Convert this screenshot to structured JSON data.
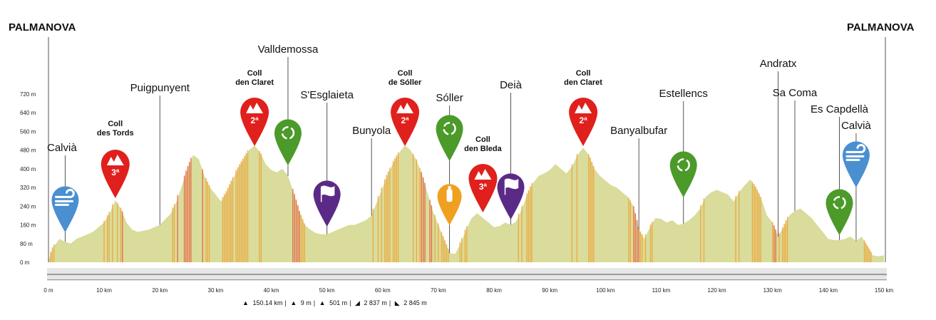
{
  "chart_data": {
    "type": "area",
    "title": "",
    "xlabel": "",
    "ylabel": "",
    "xlim": [
      0,
      150
    ],
    "ylim": [
      0,
      760
    ],
    "y_ticks": [
      "0 m",
      "80 m",
      "160 m",
      "240 m",
      "320 m",
      "400 m",
      "480 m",
      "560 m",
      "640 m",
      "720 m"
    ],
    "y_tick_values": [
      0,
      80,
      160,
      240,
      320,
      400,
      480,
      560,
      640,
      720
    ],
    "x_ticks": [
      "0 m",
      "10 km",
      "20 km",
      "30 km",
      "40 km",
      "50 km",
      "60 km",
      "70 km",
      "80 km",
      "90 km",
      "100 km",
      "110 km",
      "120 km",
      "130 km",
      "140 km",
      "150 km"
    ],
    "x_tick_values": [
      0,
      10,
      20,
      30,
      40,
      50,
      60,
      70,
      80,
      90,
      100,
      110,
      120,
      130,
      140,
      150
    ],
    "profile": [
      [
        0,
        10
      ],
      [
        1,
        70
      ],
      [
        2,
        100
      ],
      [
        3,
        88
      ],
      [
        4,
        80
      ],
      [
        5,
        100
      ],
      [
        6,
        110
      ],
      [
        7,
        120
      ],
      [
        8,
        130
      ],
      [
        9,
        150
      ],
      [
        10,
        170
      ],
      [
        11,
        210
      ],
      [
        12,
        265
      ],
      [
        13,
        230
      ],
      [
        14,
        170
      ],
      [
        15,
        140
      ],
      [
        16,
        130
      ],
      [
        17,
        135
      ],
      [
        18,
        140
      ],
      [
        19,
        150
      ],
      [
        20,
        160
      ],
      [
        21,
        185
      ],
      [
        22,
        210
      ],
      [
        23,
        260
      ],
      [
        24,
        330
      ],
      [
        25,
        400
      ],
      [
        26,
        460
      ],
      [
        27,
        440
      ],
      [
        28,
        370
      ],
      [
        29,
        320
      ],
      [
        30,
        290
      ],
      [
        31,
        260
      ],
      [
        32,
        300
      ],
      [
        33,
        350
      ],
      [
        34,
        400
      ],
      [
        35,
        440
      ],
      [
        36,
        480
      ],
      [
        37,
        500
      ],
      [
        38,
        470
      ],
      [
        39,
        420
      ],
      [
        40,
        395
      ],
      [
        41,
        385
      ],
      [
        42,
        400
      ],
      [
        43,
        370
      ],
      [
        44,
        300
      ],
      [
        45,
        220
      ],
      [
        46,
        160
      ],
      [
        47,
        140
      ],
      [
        48,
        125
      ],
      [
        49,
        120
      ],
      [
        50,
        120
      ],
      [
        51,
        130
      ],
      [
        52,
        140
      ],
      [
        53,
        150
      ],
      [
        54,
        160
      ],
      [
        55,
        160
      ],
      [
        56,
        170
      ],
      [
        57,
        180
      ],
      [
        58,
        200
      ],
      [
        59,
        260
      ],
      [
        60,
        320
      ],
      [
        61,
        380
      ],
      [
        62,
        430
      ],
      [
        63,
        470
      ],
      [
        64,
        500
      ],
      [
        65,
        480
      ],
      [
        66,
        440
      ],
      [
        67,
        380
      ],
      [
        68,
        300
      ],
      [
        69,
        220
      ],
      [
        70,
        160
      ],
      [
        71,
        100
      ],
      [
        72,
        40
      ],
      [
        73,
        35
      ],
      [
        74,
        80
      ],
      [
        75,
        140
      ],
      [
        76,
        190
      ],
      [
        77,
        210
      ],
      [
        78,
        190
      ],
      [
        79,
        170
      ],
      [
        80,
        150
      ],
      [
        81,
        155
      ],
      [
        82,
        170
      ],
      [
        83,
        160
      ],
      [
        84,
        175
      ],
      [
        85,
        230
      ],
      [
        86,
        290
      ],
      [
        87,
        340
      ],
      [
        88,
        370
      ],
      [
        89,
        380
      ],
      [
        90,
        395
      ],
      [
        91,
        420
      ],
      [
        92,
        400
      ],
      [
        93,
        380
      ],
      [
        94,
        410
      ],
      [
        95,
        460
      ],
      [
        96,
        490
      ],
      [
        97,
        460
      ],
      [
        98,
        400
      ],
      [
        99,
        370
      ],
      [
        100,
        350
      ],
      [
        101,
        330
      ],
      [
        102,
        320
      ],
      [
        103,
        300
      ],
      [
        104,
        280
      ],
      [
        105,
        240
      ],
      [
        106,
        140
      ],
      [
        107,
        100
      ],
      [
        108,
        150
      ],
      [
        109,
        190
      ],
      [
        110,
        185
      ],
      [
        111,
        170
      ],
      [
        112,
        180
      ],
      [
        113,
        160
      ],
      [
        114,
        165
      ],
      [
        115,
        180
      ],
      [
        116,
        200
      ],
      [
        117,
        230
      ],
      [
        118,
        280
      ],
      [
        119,
        300
      ],
      [
        120,
        310
      ],
      [
        121,
        300
      ],
      [
        122,
        290
      ],
      [
        123,
        260
      ],
      [
        124,
        300
      ],
      [
        125,
        330
      ],
      [
        126,
        355
      ],
      [
        127,
        320
      ],
      [
        128,
        270
      ],
      [
        129,
        200
      ],
      [
        130,
        170
      ],
      [
        131,
        110
      ],
      [
        132,
        150
      ],
      [
        133,
        200
      ],
      [
        134,
        220
      ],
      [
        135,
        230
      ],
      [
        136,
        210
      ],
      [
        137,
        190
      ],
      [
        138,
        160
      ],
      [
        139,
        130
      ],
      [
        140,
        100
      ],
      [
        141,
        95
      ],
      [
        142,
        95
      ],
      [
        143,
        100
      ],
      [
        144,
        110
      ],
      [
        145,
        90
      ],
      [
        146,
        110
      ],
      [
        147,
        70
      ],
      [
        148,
        30
      ],
      [
        149,
        25
      ],
      [
        150,
        30
      ]
    ],
    "places": [
      {
        "name": "Calvià",
        "km": 3
      },
      {
        "name": "Puigpunyent",
        "km": 20
      },
      {
        "name": "Valldemossa",
        "km": 43
      },
      {
        "name": "S'Esglaieta",
        "km": 50
      },
      {
        "name": "Bunyola",
        "km": 58
      },
      {
        "name": "Sóller",
        "km": 72
      },
      {
        "name": "Deià",
        "km": 83
      },
      {
        "name": "Banyalbufar",
        "km": 106
      },
      {
        "name": "Estellencs",
        "km": 114
      },
      {
        "name": "Andratx",
        "km": 131
      },
      {
        "name": "Sa Coma",
        "km": 134
      },
      {
        "name": "Es Capdellà",
        "km": 142
      },
      {
        "name": "Calvià",
        "km": 145
      }
    ],
    "climbs": [
      {
        "line1": "Coll",
        "line2": "des Tords",
        "category": "3ª",
        "km": 12
      },
      {
        "line1": "Coll",
        "line2": "den Claret",
        "category": "2ª",
        "km": 37
      },
      {
        "line1": "Coll",
        "line2": "de Sóller",
        "category": "2ª",
        "km": 64
      },
      {
        "line1": "Coll",
        "line2": "den Bleda",
        "category": "3ª",
        "km": 78
      },
      {
        "line1": "Coll",
        "line2": "den Claret",
        "category": "2ª",
        "km": 96
      }
    ],
    "markers": [
      {
        "type": "start-finish",
        "icon": "wind-icon",
        "color": "#4a8fd0",
        "km": 3
      },
      {
        "type": "recycle",
        "icon": "recycle-icon",
        "color": "#4c9a2a",
        "km": 43
      },
      {
        "type": "sprint",
        "icon": "flag-icon",
        "color": "#5b2a86",
        "km": 50
      },
      {
        "type": "recycle",
        "icon": "recycle-icon",
        "color": "#4c9a2a",
        "km": 72
      },
      {
        "type": "feed",
        "icon": "bottle-icon",
        "color": "#f0a020",
        "km": 72
      },
      {
        "type": "sprint",
        "icon": "flag-icon",
        "color": "#5b2a86",
        "km": 83
      },
      {
        "type": "recycle",
        "icon": "recycle-icon",
        "color": "#4c9a2a",
        "km": 114
      },
      {
        "type": "recycle",
        "icon": "recycle-icon",
        "color": "#4c9a2a",
        "km": 142
      },
      {
        "type": "start-finish",
        "icon": "wind-icon",
        "color": "#4a8fd0",
        "km": 145
      }
    ],
    "colors": {
      "base": "#d9dc9a",
      "steep": "#e8553a",
      "medium": "#f0a030",
      "climb": "#e0201d",
      "recycle": "#4c9a2a",
      "sprint": "#5b2a86",
      "feed": "#f0a020",
      "wind": "#4a8fd0"
    }
  },
  "header": {
    "start_label": "PALMANOVA",
    "finish_label": "PALMANOVA"
  },
  "stats": {
    "distance": "150.14 km",
    "s1": "9 m",
    "s2": "501 m",
    "s3": "2 837 m",
    "s4": "2 845 m"
  }
}
